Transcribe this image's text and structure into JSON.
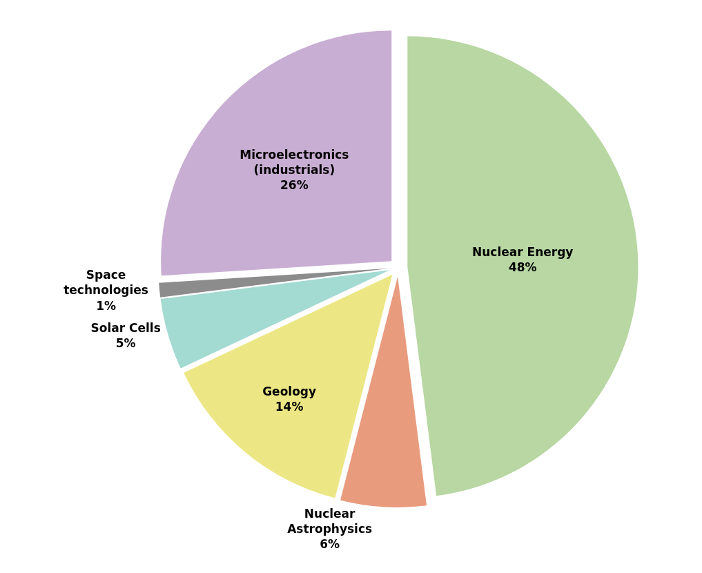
{
  "chart_data": {
    "type": "pie",
    "categories": [
      "Nuclear Energy",
      "Nuclear Astrophysics",
      "Geology",
      "Solar Cells",
      "Space technologies",
      "Microelectronics (industrials)"
    ],
    "values": [
      48,
      6,
      14,
      5,
      1,
      26
    ],
    "value_labels": [
      "48%",
      "6%",
      "14%",
      "5%",
      "1%",
      "26%"
    ],
    "colors": [
      "#b8d7a3",
      "#e99b7e",
      "#ece784",
      "#a3dad2",
      "#8c8c8c",
      "#c9aed3"
    ],
    "legend": false
  }
}
